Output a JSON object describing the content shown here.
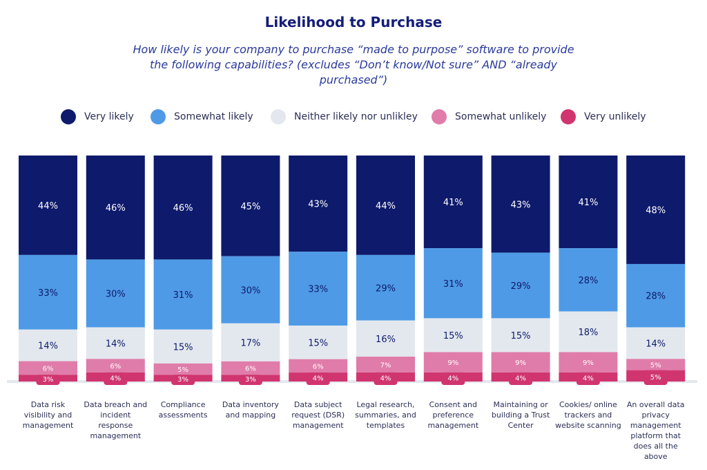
{
  "chart_data": {
    "type": "bar",
    "stacked": true,
    "title": "Likelihood to Purchase",
    "subtitle": "How likely is your company to purchase “made to purpose” software to provide the following capabilities? (excludes “Don’t know/Not sure” AND “already purchased”)",
    "legend_position": "top",
    "grid": false,
    "ylim": [
      0,
      100
    ],
    "categories": [
      "Data risk visibility and management",
      "Data breach and incident response management",
      "Compliance assessments",
      "Data inventory and mapping",
      "Data subject request (DSR) management",
      "Legal research, summaries, and templates",
      "Consent and preference management",
      "Maintaining or building a Trust Center",
      "Cookies/ online trackers and website scanning",
      "An overall data privacy management platform that does all the above"
    ],
    "series": [
      {
        "name": "Very likely",
        "color": "#0e1a6b",
        "label_color": "#ffffff",
        "values": [
          44,
          46,
          46,
          45,
          43,
          44,
          41,
          43,
          41,
          48
        ]
      },
      {
        "name": "Somewhat likely",
        "color": "#4e9ae6",
        "label_color": "#0e1a6b",
        "values": [
          33,
          30,
          31,
          30,
          33,
          29,
          31,
          29,
          28,
          28
        ]
      },
      {
        "name": "Neither likely nor unlikley",
        "color": "#e3e8ee",
        "label_color": "#0e1a6b",
        "values": [
          14,
          14,
          15,
          17,
          15,
          16,
          15,
          15,
          18,
          14
        ]
      },
      {
        "name": "Somewhat unlikely",
        "color": "#e07ca9",
        "label_color": "#ffffff",
        "values": [
          6,
          6,
          5,
          6,
          6,
          7,
          9,
          9,
          9,
          5
        ]
      },
      {
        "name": "Very unlikely",
        "color": "#d0356f",
        "label_color": "#ffffff",
        "values": [
          3,
          4,
          3,
          3,
          4,
          4,
          4,
          4,
          4,
          5
        ]
      }
    ]
  }
}
